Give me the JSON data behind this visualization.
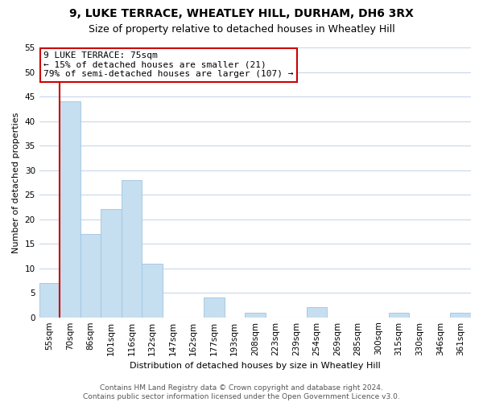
{
  "title": "9, LUKE TERRACE, WHEATLEY HILL, DURHAM, DH6 3RX",
  "subtitle": "Size of property relative to detached houses in Wheatley Hill",
  "xlabel": "Distribution of detached houses by size in Wheatley Hill",
  "ylabel": "Number of detached properties",
  "bar_values": [
    7,
    44,
    17,
    22,
    28,
    11,
    0,
    0,
    4,
    0,
    1,
    0,
    0,
    2,
    0,
    0,
    0,
    1,
    0,
    0,
    1
  ],
  "bin_labels": [
    "55sqm",
    "70sqm",
    "86sqm",
    "101sqm",
    "116sqm",
    "132sqm",
    "147sqm",
    "162sqm",
    "177sqm",
    "193sqm",
    "208sqm",
    "223sqm",
    "239sqm",
    "254sqm",
    "269sqm",
    "285sqm",
    "300sqm",
    "315sqm",
    "330sqm",
    "346sqm",
    "361sqm"
  ],
  "bar_color": "#c5dff0",
  "bar_edge_color": "#a0c4e0",
  "grid_color": "#c8d8e8",
  "vline_color": "#cc0000",
  "vline_x_bar_index": 1,
  "annotation_title": "9 LUKE TERRACE: 75sqm",
  "annotation_line1": "← 15% of detached houses are smaller (21)",
  "annotation_line2": "79% of semi-detached houses are larger (107) →",
  "annotation_box_facecolor": "white",
  "annotation_box_edgecolor": "#cc0000",
  "ylim": [
    0,
    55
  ],
  "yticks": [
    0,
    5,
    10,
    15,
    20,
    25,
    30,
    35,
    40,
    45,
    50,
    55
  ],
  "title_fontsize": 10,
  "subtitle_fontsize": 9,
  "ylabel_fontsize": 8,
  "xlabel_fontsize": 8,
  "tick_fontsize": 7.5,
  "annotation_fontsize": 8,
  "footer_fontsize": 6.5,
  "background_color": "#ffffff",
  "footer_line1": "Contains HM Land Registry data © Crown copyright and database right 2024.",
  "footer_line2": "Contains public sector information licensed under the Open Government Licence v3.0."
}
